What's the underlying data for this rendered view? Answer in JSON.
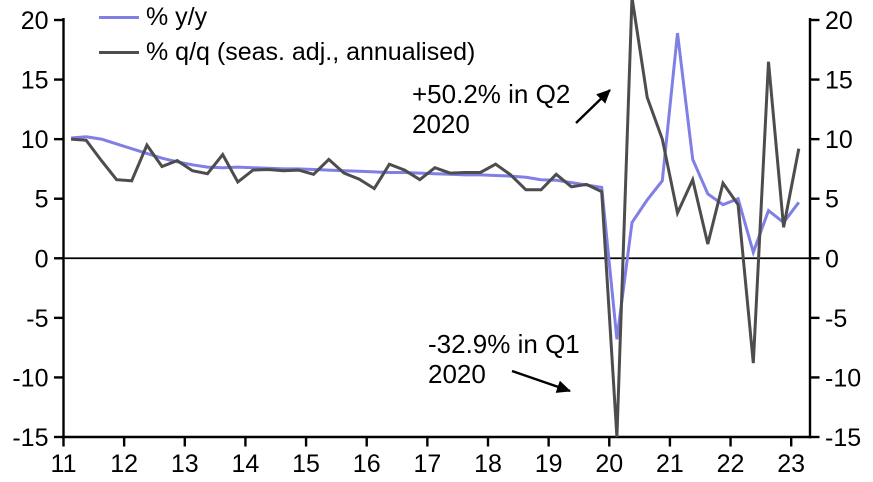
{
  "chart_data": {
    "type": "line",
    "title": "",
    "legend_position": "top-left",
    "grid": false,
    "x_axis": {
      "tick_labels": [
        "11",
        "12",
        "13",
        "14",
        "15",
        "16",
        "17",
        "18",
        "19",
        "20",
        "21",
        "22",
        "23"
      ],
      "tick_years": [
        2011,
        2012,
        2013,
        2014,
        2015,
        2016,
        2017,
        2018,
        2019,
        2020,
        2021,
        2022,
        2023
      ],
      "domain": [
        2011,
        2023.31
      ]
    },
    "y_axis": {
      "ticks": [
        20,
        15,
        10,
        5,
        0,
        -5,
        -10,
        -15
      ],
      "domain": [
        -15,
        20
      ],
      "mirrored_right_axis": true,
      "zero_line": true
    },
    "quarters": [
      "2011Q1",
      "2011Q2",
      "2011Q3",
      "2011Q4",
      "2012Q1",
      "2012Q2",
      "2012Q3",
      "2012Q4",
      "2013Q1",
      "2013Q2",
      "2013Q3",
      "2013Q4",
      "2014Q1",
      "2014Q2",
      "2014Q3",
      "2014Q4",
      "2015Q1",
      "2015Q2",
      "2015Q3",
      "2015Q4",
      "2016Q1",
      "2016Q2",
      "2016Q3",
      "2016Q4",
      "2017Q1",
      "2017Q2",
      "2017Q3",
      "2017Q4",
      "2018Q1",
      "2018Q2",
      "2018Q3",
      "2018Q4",
      "2019Q1",
      "2019Q2",
      "2019Q3",
      "2019Q4",
      "2020Q1",
      "2020Q2",
      "2020Q3",
      "2020Q4",
      "2021Q1",
      "2021Q2",
      "2021Q3",
      "2021Q4",
      "2022Q1",
      "2022Q2",
      "2022Q3",
      "2022Q4",
      "2023Q1"
    ],
    "series": [
      {
        "name": "% y/y",
        "color": "#7f7fe6",
        "values": [
          10.1,
          10.2,
          10.0,
          9.6,
          9.2,
          8.8,
          8.4,
          8.1,
          7.85,
          7.65,
          7.6,
          7.65,
          7.6,
          7.55,
          7.5,
          7.5,
          7.45,
          7.4,
          7.35,
          7.3,
          7.25,
          7.2,
          7.2,
          7.15,
          7.1,
          7.05,
          7.0,
          7.0,
          6.95,
          6.9,
          6.8,
          6.6,
          6.55,
          6.35,
          6.15,
          5.95,
          -6.8,
          3.0,
          4.9,
          6.5,
          18.9,
          8.3,
          5.4,
          4.5,
          5.0,
          0.5,
          4.0,
          3.0,
          4.7
        ]
      },
      {
        "name": "% q/q (seas. adj., annualised)",
        "color": "#4d4d4d",
        "values": [
          10.0,
          9.9,
          8.2,
          6.6,
          6.5,
          9.5,
          7.7,
          8.2,
          7.35,
          7.1,
          8.7,
          6.4,
          7.4,
          7.45,
          7.35,
          7.4,
          7.05,
          8.3,
          7.15,
          6.65,
          5.85,
          7.9,
          7.4,
          6.6,
          7.6,
          7.15,
          7.2,
          7.2,
          7.9,
          7.0,
          5.75,
          5.75,
          7.05,
          6.0,
          6.2,
          5.6,
          -32.9,
          50.2,
          13.5,
          10.0,
          3.8,
          6.6,
          1.2,
          6.3,
          4.5,
          -8.8,
          16.5,
          2.6,
          9.2
        ]
      }
    ],
    "annotations": [
      {
        "line1": "+50.2% in Q2",
        "line2": "2020",
        "value": 50.2,
        "quarter": "2020Q2",
        "series": "% q/q (seas. adj., annualised)"
      },
      {
        "line1": "-32.9% in Q1",
        "line2": "2020",
        "value": -32.9,
        "quarter": "2020Q1",
        "series": "% q/q (seas. adj., annualised)"
      }
    ],
    "axis_color": "#000000",
    "text_color": "#000000"
  }
}
